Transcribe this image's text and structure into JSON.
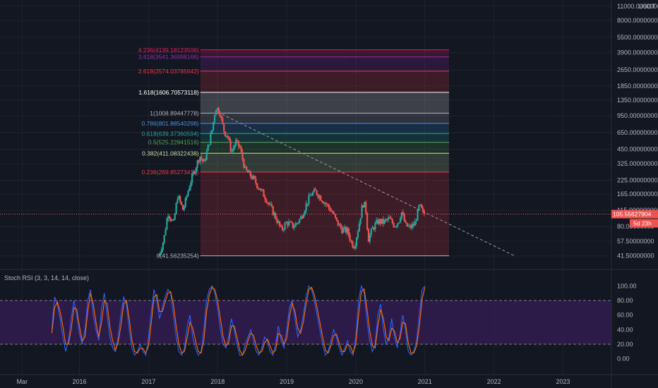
{
  "indicator": {
    "title": "Stoch RSI (3, 3, 14, 14, close)"
  },
  "price_axis": {
    "currency": "USDT",
    "last_price": "105.55627904",
    "countdown": "5d 23h"
  },
  "colors": {
    "background": "#131722",
    "up": "#26a69a",
    "down": "#ef5350",
    "k_line": "#2962ff",
    "d_line": "#ff6d00",
    "rsi_band": "#311b4f",
    "last_price_tag": "#ef5350"
  },
  "chart_data": [
    {
      "type": "candlestick",
      "title": "",
      "y_scale": "log",
      "ylim": [
        37,
        11500
      ],
      "y_ticks": [
        {
          "value": 11000,
          "label": "11000.00000000"
        },
        {
          "value": 8000,
          "label": "8000.00000000"
        },
        {
          "value": 5500,
          "label": "5500.00000000"
        },
        {
          "value": 3900,
          "label": "3900.00000000"
        },
        {
          "value": 2650,
          "label": "2650.00000000"
        },
        {
          "value": 1850,
          "label": "1850.00000000"
        },
        {
          "value": 1350,
          "label": "1350.00000000"
        },
        {
          "value": 950,
          "label": "950.00000000"
        },
        {
          "value": 650,
          "label": "650.00000000"
        },
        {
          "value": 450,
          "label": "450.00000000"
        },
        {
          "value": 325,
          "label": "325.00000000"
        },
        {
          "value": 225,
          "label": "225.00000000"
        },
        {
          "value": 165,
          "label": "165.00000000"
        },
        {
          "value": 115,
          "label": "115.00000000"
        },
        {
          "value": 80,
          "label": "80.00000000"
        },
        {
          "value": 57.5,
          "label": "57.50000000"
        },
        {
          "value": 41.5,
          "label": "41.50000000"
        }
      ],
      "x_ticks": [
        {
          "value": 2015.17,
          "label": "Mar"
        },
        {
          "value": 2016,
          "label": "2016"
        },
        {
          "value": 2017,
          "label": "2017"
        },
        {
          "value": 2018,
          "label": "2018"
        },
        {
          "value": 2019,
          "label": "2019"
        },
        {
          "value": 2020,
          "label": "2020"
        },
        {
          "value": 2021,
          "label": "2021"
        },
        {
          "value": 2022,
          "label": "2022"
        },
        {
          "value": 2023,
          "label": "2023"
        }
      ],
      "xlim": [
        2014.85,
        2023.7
      ],
      "price_path": [
        [
          2017.15,
          42
        ],
        [
          2017.22,
          60
        ],
        [
          2017.28,
          110
        ],
        [
          2017.36,
          85
        ],
        [
          2017.42,
          160
        ],
        [
          2017.5,
          115
        ],
        [
          2017.6,
          210
        ],
        [
          2017.68,
          300
        ],
        [
          2017.74,
          390
        ],
        [
          2017.8,
          330
        ],
        [
          2017.86,
          470
        ],
        [
          2017.92,
          700
        ],
        [
          2017.97,
          1150
        ],
        [
          2018.03,
          1050
        ],
        [
          2018.06,
          820
        ],
        [
          2018.1,
          650
        ],
        [
          2018.14,
          620
        ],
        [
          2018.2,
          420
        ],
        [
          2018.26,
          530
        ],
        [
          2018.32,
          470
        ],
        [
          2018.4,
          280
        ],
        [
          2018.5,
          240
        ],
        [
          2018.6,
          190
        ],
        [
          2018.7,
          150
        ],
        [
          2018.78,
          118
        ],
        [
          2018.85,
          95
        ],
        [
          2018.92,
          74
        ],
        [
          2019.0,
          88
        ],
        [
          2019.1,
          80
        ],
        [
          2019.2,
          96
        ],
        [
          2019.28,
          130
        ],
        [
          2019.35,
          165
        ],
        [
          2019.42,
          175
        ],
        [
          2019.5,
          150
        ],
        [
          2019.58,
          130
        ],
        [
          2019.66,
          110
        ],
        [
          2019.72,
          89
        ],
        [
          2019.8,
          75
        ],
        [
          2019.88,
          72
        ],
        [
          2019.94,
          55
        ],
        [
          2019.98,
          52
        ],
        [
          2020.04,
          80
        ],
        [
          2020.1,
          135
        ],
        [
          2020.14,
          125
        ],
        [
          2020.18,
          60
        ],
        [
          2020.24,
          76
        ],
        [
          2020.32,
          90
        ],
        [
          2020.4,
          88
        ],
        [
          2020.48,
          95
        ],
        [
          2020.56,
          82
        ],
        [
          2020.62,
          90
        ],
        [
          2020.66,
          112
        ],
        [
          2020.72,
          82
        ],
        [
          2020.78,
          78
        ],
        [
          2020.85,
          84
        ],
        [
          2020.92,
          128
        ],
        [
          2020.97,
          108
        ],
        [
          2021.0,
          105.55627904
        ]
      ],
      "fib_levels": [
        {
          "ratio": "0",
          "price": 41.56235254,
          "label": "0(41.56235254)",
          "color": "#b2b5be"
        },
        {
          "ratio": "0.236",
          "price": 269.85273418,
          "label": "0.236(269.85273418)",
          "color": "#f23645"
        },
        {
          "ratio": "0.382",
          "price": 411.08322438,
          "label": "0.382(411.08322438)",
          "color": "#c5e1a5"
        },
        {
          "ratio": "0.5",
          "price": 525.22841516,
          "label": "0.5(525.22841516)",
          "color": "#4caf50"
        },
        {
          "ratio": "0.618",
          "price": 639.37360594,
          "label": "0.618(639.37360594)",
          "color": "#26a69a"
        },
        {
          "ratio": "0.786",
          "price": 801.88540298,
          "label": "0.786(801.88540298)",
          "color": "#4a90d9"
        },
        {
          "ratio": "1",
          "price": 1008.89447778,
          "label": "1(1008.89447778)",
          "color": "#b2b5be"
        },
        {
          "ratio": "1.618",
          "price": 1606.70573118,
          "label": "1.618(1606.70573118)",
          "color": "#ffffff"
        },
        {
          "ratio": "2.618",
          "price": 2574.03785642,
          "label": "2.618(2574.03785642)",
          "color": "#f23645"
        },
        {
          "ratio": "3.618",
          "price": 3541.36998166,
          "label": "3.618(3541.36998166)",
          "color": "#9c27b0"
        },
        {
          "ratio": "4.236",
          "price": 4139.18123506,
          "label": "4.236(4139.18123506)",
          "color": "#e91e63"
        }
      ],
      "fib_x_range": [
        2017.75,
        2021.35
      ],
      "trendline": {
        "x": [
          2018.0,
          2022.3
        ],
        "y": [
          1030,
          41.5
        ]
      }
    },
    {
      "type": "line",
      "title": "",
      "ylim": [
        -10,
        108
      ],
      "y_ticks": [
        {
          "value": 100,
          "label": "100.00"
        },
        {
          "value": 80,
          "label": "80.00"
        },
        {
          "value": 60,
          "label": "60.00"
        },
        {
          "value": 40,
          "label": "40.00"
        },
        {
          "value": 20,
          "label": "20.00"
        },
        {
          "value": 0,
          "label": "0.00"
        }
      ],
      "bands": {
        "upper": 80,
        "lower": 20
      },
      "x": [
        2015.6,
        2015.64,
        2015.68,
        2015.72,
        2015.76,
        2015.8,
        2015.84,
        2015.88,
        2015.92,
        2015.96,
        2016.0,
        2016.04,
        2016.08,
        2016.12,
        2016.16,
        2016.2,
        2016.24,
        2016.28,
        2016.32,
        2016.36,
        2016.4,
        2016.44,
        2016.48,
        2016.52,
        2016.56,
        2016.6,
        2016.64,
        2016.68,
        2016.72,
        2016.76,
        2016.8,
        2016.84,
        2016.88,
        2016.92,
        2016.96,
        2017.0,
        2017.04,
        2017.08,
        2017.12,
        2017.16,
        2017.2,
        2017.24,
        2017.28,
        2017.32,
        2017.36,
        2017.4,
        2017.44,
        2017.48,
        2017.52,
        2017.56,
        2017.6,
        2017.64,
        2017.68,
        2017.72,
        2017.76,
        2017.8,
        2017.84,
        2017.88,
        2017.92,
        2017.96,
        2018.0,
        2018.04,
        2018.08,
        2018.12,
        2018.16,
        2018.2,
        2018.24,
        2018.28,
        2018.32,
        2018.36,
        2018.4,
        2018.44,
        2018.48,
        2018.52,
        2018.56,
        2018.6,
        2018.64,
        2018.68,
        2018.72,
        2018.76,
        2018.8,
        2018.84,
        2018.88,
        2018.92,
        2018.96,
        2019.0,
        2019.04,
        2019.08,
        2019.12,
        2019.16,
        2019.2,
        2019.24,
        2019.28,
        2019.32,
        2019.36,
        2019.4,
        2019.44,
        2019.48,
        2019.52,
        2019.56,
        2019.6,
        2019.64,
        2019.68,
        2019.72,
        2019.76,
        2019.8,
        2019.84,
        2019.88,
        2019.92,
        2019.96,
        2020.0,
        2020.04,
        2020.08,
        2020.12,
        2020.16,
        2020.2,
        2020.24,
        2020.28,
        2020.32,
        2020.36,
        2020.4,
        2020.44,
        2020.48,
        2020.52,
        2020.56,
        2020.6,
        2020.64,
        2020.68,
        2020.72,
        2020.76,
        2020.8,
        2020.84,
        2020.88,
        2020.92,
        2020.96,
        2021.0
      ],
      "series": [
        {
          "values": [
            40,
            85,
            75,
            55,
            30,
            10,
            25,
            55,
            80,
            60,
            35,
            20,
            40,
            80,
            95,
            60,
            40,
            25,
            70,
            90,
            60,
            30,
            15,
            10,
            30,
            60,
            85,
            75,
            40,
            15,
            5,
            10,
            20,
            10,
            5,
            30,
            65,
            95,
            80,
            55,
            70,
            85,
            95,
            90,
            60,
            30,
            10,
            5,
            15,
            45,
            60,
            30,
            15,
            5,
            10,
            40,
            80,
            95,
            100,
            90,
            70,
            40,
            20,
            15,
            30,
            55,
            40,
            20,
            5,
            5,
            20,
            30,
            40,
            25,
            10,
            5,
            15,
            30,
            25,
            10,
            5,
            20,
            45,
            25,
            15,
            40,
            70,
            80,
            55,
            30,
            40,
            60,
            85,
            100,
            95,
            80,
            60,
            40,
            20,
            5,
            10,
            25,
            40,
            30,
            15,
            5,
            15,
            25,
            10,
            5,
            30,
            80,
            100,
            90,
            55,
            25,
            10,
            20,
            60,
            75,
            40,
            20,
            30,
            55,
            30,
            15,
            35,
            60,
            40,
            10,
            5,
            10,
            25,
            60,
            95,
            100
          ]
        },
        {
          "values": [
            35,
            70,
            78,
            65,
            45,
            20,
            20,
            40,
            70,
            68,
            45,
            25,
            30,
            65,
            90,
            75,
            50,
            30,
            50,
            80,
            75,
            45,
            25,
            12,
            22,
            45,
            75,
            80,
            55,
            25,
            10,
            8,
            15,
            14,
            8,
            18,
            50,
            85,
            88,
            65,
            65,
            78,
            90,
            92,
            75,
            45,
            20,
            8,
            10,
            30,
            50,
            42,
            25,
            10,
            8,
            25,
            65,
            88,
            98,
            95,
            80,
            55,
            30,
            18,
            22,
            45,
            45,
            30,
            12,
            5,
            12,
            25,
            35,
            32,
            18,
            8,
            10,
            22,
            27,
            18,
            8,
            12,
            35,
            32,
            20,
            28,
            58,
            76,
            65,
            42,
            35,
            50,
            75,
            95,
            98,
            88,
            70,
            50,
            30,
            12,
            8,
            18,
            32,
            34,
            22,
            10,
            10,
            20,
            18,
            8,
            20,
            60,
            92,
            96,
            70,
            40,
            18,
            15,
            45,
            68,
            55,
            30,
            25,
            42,
            38,
            22,
            28,
            50,
            48,
            22,
            8,
            8,
            18,
            45,
            82,
            98
          ]
        }
      ]
    }
  ]
}
